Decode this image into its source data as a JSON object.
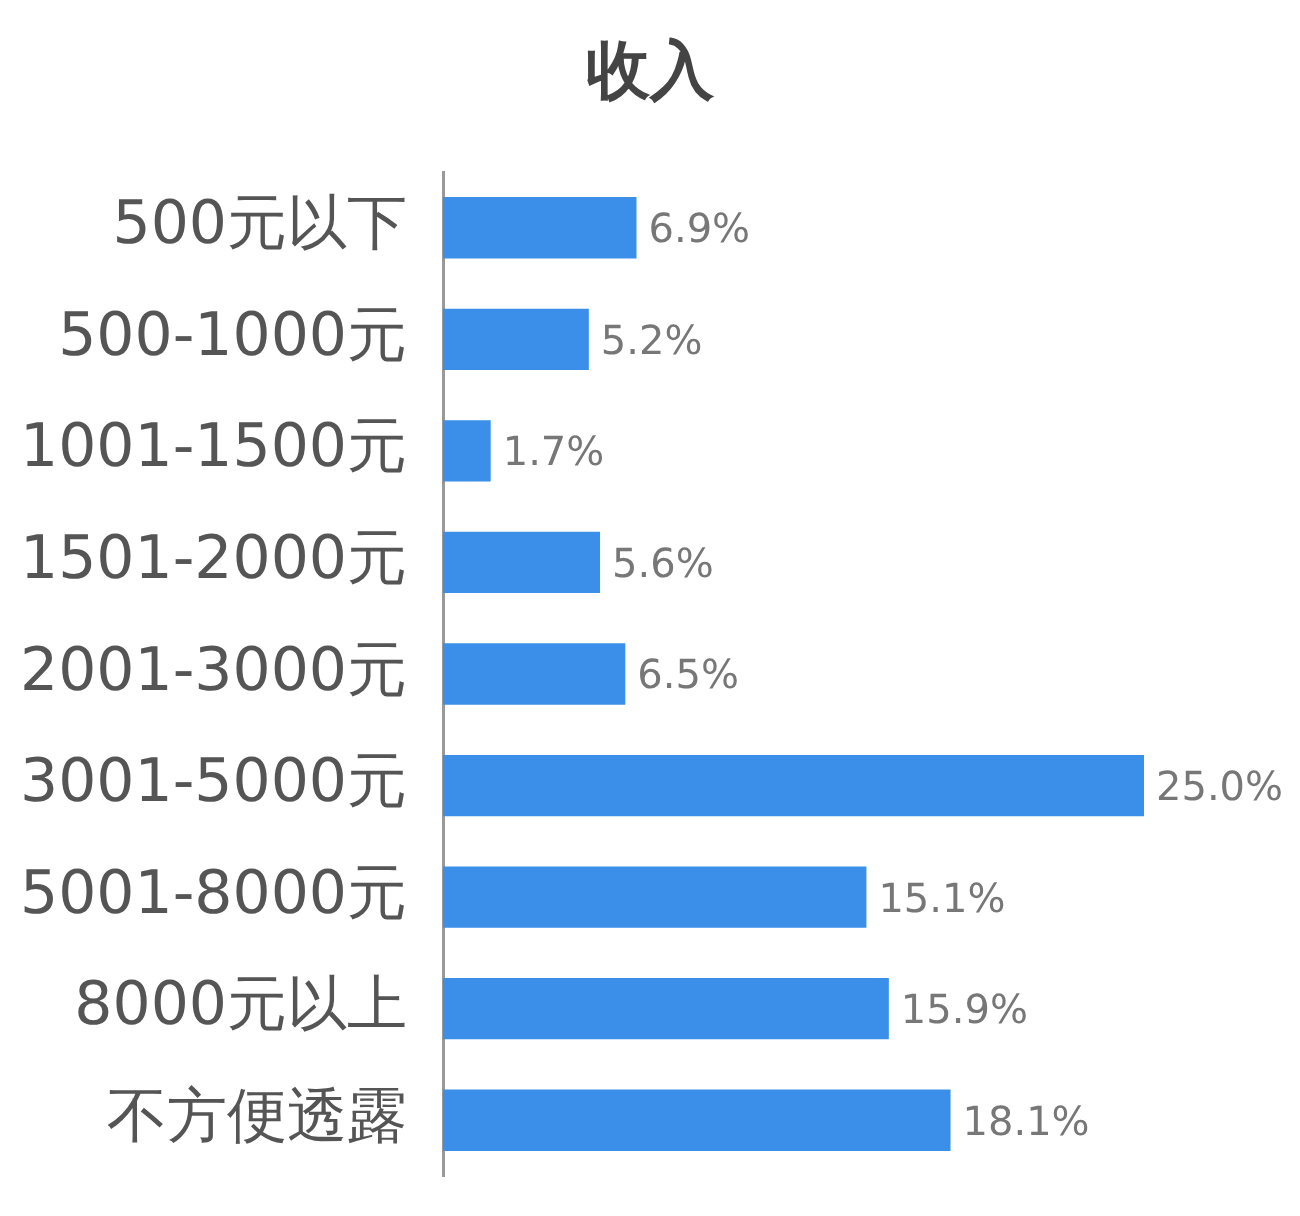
{
  "chart_data": {
    "type": "bar",
    "orientation": "horizontal",
    "title": "收入",
    "categories": [
      "500元以下",
      "500-1000元",
      "1001-1500元",
      "1501-2000元",
      "2001-3000元",
      "3001-5000元",
      "5001-8000元",
      "8000元以上",
      "不方便透露"
    ],
    "values": [
      6.9,
      5.2,
      1.7,
      5.6,
      6.5,
      25.0,
      15.1,
      15.9,
      18.1
    ],
    "value_labels": [
      "6.9%",
      "5.2%",
      "1.7%",
      "5.6%",
      "6.5%",
      "25.0%",
      "15.1%",
      "15.9%",
      "18.1%"
    ],
    "color": "#3b8fe8",
    "tick_labels": "y",
    "legend": false
  }
}
